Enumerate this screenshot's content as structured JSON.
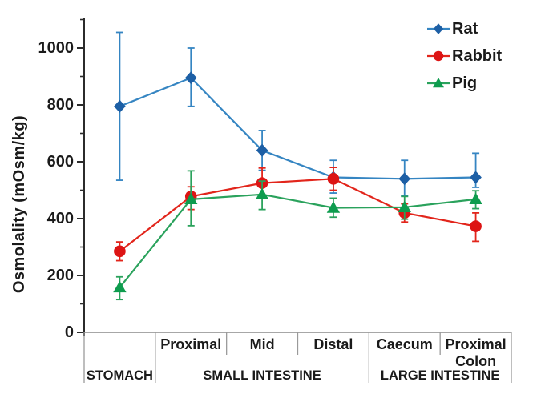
{
  "figure": {
    "background_color": "#ffffff",
    "text_color": "#1a1a1a",
    "axis_color": "#2b2b2b",
    "table_line_color": "#9a9a9a"
  },
  "chart_data": {
    "type": "line",
    "title": "",
    "xlabel": "",
    "ylabel": "Osmolality  (mOsm/kg)",
    "ylim": [
      0,
      1104
    ],
    "y_major_ticks": [
      0,
      200,
      400,
      600,
      800,
      1000
    ],
    "y_minor_ticks": [
      100,
      300,
      500,
      700,
      900,
      1100
    ],
    "grid": false,
    "legend_position": "top-right",
    "error_bars": true,
    "categories": [
      "Stomach",
      "Proximal",
      "Mid",
      "Distal",
      "Caecum",
      "Proximal Colon"
    ],
    "category_row_labels": [
      "",
      "Proximal",
      "Mid",
      "Distal",
      "Caecum",
      "Proximal\nColon"
    ],
    "groups": [
      {
        "label": "STOMACH",
        "span": [
          0,
          1
        ]
      },
      {
        "label": "SMALL INTESTINE",
        "span": [
          1,
          4
        ]
      },
      {
        "label": "LARGE INTESTINE",
        "span": [
          4,
          6
        ]
      }
    ],
    "series": [
      {
        "name": "Rat",
        "marker": "diamond",
        "line_color": "#3585c2",
        "marker_color": "#1d5fa5",
        "values": [
          795,
          895,
          640,
          545,
          540,
          545
        ],
        "err_low": [
          535,
          795,
          570,
          490,
          480,
          510
        ],
        "err_high": [
          1055,
          1000,
          710,
          605,
          605,
          630
        ]
      },
      {
        "name": "Rabbit",
        "marker": "circle",
        "line_color": "#e2251b",
        "marker_color": "#dd1414",
        "values": [
          285,
          478,
          525,
          540,
          420,
          373
        ],
        "err_low": [
          252,
          432,
          480,
          500,
          388,
          320
        ],
        "err_high": [
          318,
          512,
          578,
          580,
          452,
          420
        ]
      },
      {
        "name": "Pig",
        "marker": "triangle",
        "line_color": "#2aa25c",
        "marker_color": "#0e9c4e",
        "values": [
          158,
          468,
          485,
          438,
          440,
          468
        ],
        "err_low": [
          115,
          375,
          432,
          405,
          398,
          435
        ],
        "err_high": [
          195,
          568,
          532,
          472,
          478,
          498
        ]
      }
    ]
  }
}
